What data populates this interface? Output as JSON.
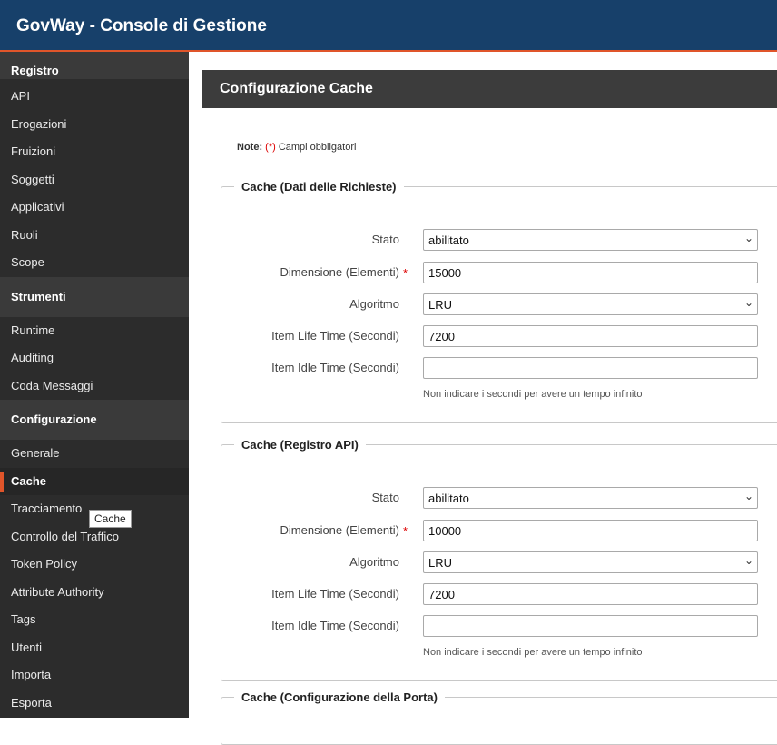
{
  "app": {
    "title": "GovWay - Console di Gestione"
  },
  "sidebar": {
    "sections": [
      {
        "title": "Registro",
        "items": [
          "API",
          "Erogazioni",
          "Fruizioni",
          "Soggetti",
          "Applicativi",
          "Ruoli",
          "Scope"
        ]
      },
      {
        "title": "Strumenti",
        "items": [
          "Runtime",
          "Auditing",
          "Coda Messaggi"
        ]
      },
      {
        "title": "Configurazione",
        "items": [
          "Generale",
          "Cache",
          "Tracciamento",
          "Controllo del Traffico",
          "Token Policy",
          "Attribute Authority",
          "Tags",
          "Utenti",
          "Importa",
          "Esporta"
        ]
      }
    ],
    "active_item": "Cache",
    "tooltip": "Cache"
  },
  "main": {
    "title": "Configurazione Cache",
    "note_label": "Note:",
    "note_mark": "(*)",
    "note_text": " Campi obbligatori"
  },
  "fieldsets": [
    {
      "legend": "Cache (Dati delle Richieste)",
      "stato_label": "Stato",
      "stato_value": "abilitato",
      "dim_label": "Dimensione (Elementi)",
      "dim_value": "15000",
      "alg_label": "Algoritmo",
      "alg_value": "LRU",
      "life_label": "Item Life Time (Secondi)",
      "life_value": "7200",
      "idle_label": "Item Idle Time (Secondi)",
      "idle_value": "",
      "hint": "Non indicare i secondi per avere un tempo infinito"
    },
    {
      "legend": "Cache (Registro API)",
      "stato_label": "Stato",
      "stato_value": "abilitato",
      "dim_label": "Dimensione (Elementi)",
      "dim_value": "10000",
      "alg_label": "Algoritmo",
      "alg_value": "LRU",
      "life_label": "Item Life Time (Secondi)",
      "life_value": "7200",
      "idle_label": "Item Idle Time (Secondi)",
      "idle_value": "",
      "hint": "Non indicare i secondi per avere un tempo infinito"
    },
    {
      "legend": "Cache (Configurazione della Porta)"
    }
  ],
  "icons": {
    "select": "chevron-down-icon",
    "required": "asterisk-icon"
  },
  "colors": {
    "topbar": "#17406a",
    "accent": "#e0552a",
    "sidebar": "#2c2c2c",
    "required": "#dd0000"
  }
}
